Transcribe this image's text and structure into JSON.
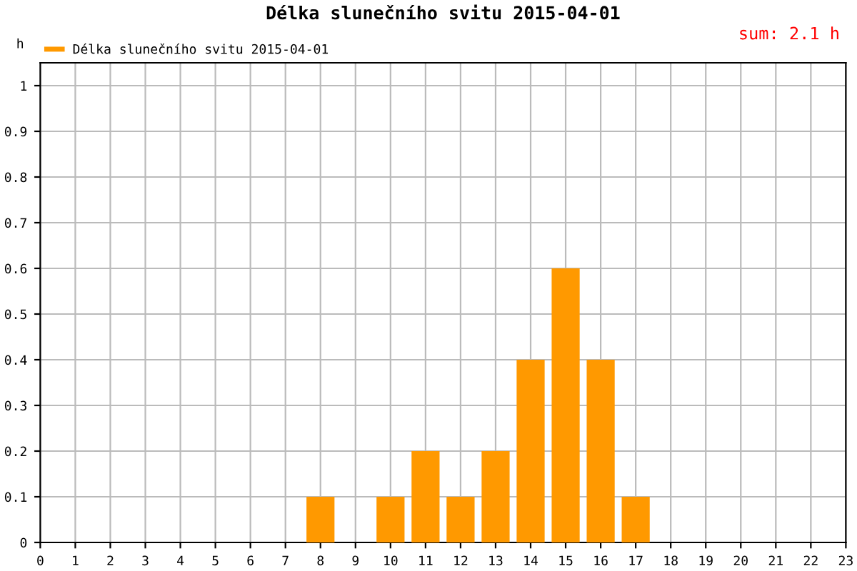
{
  "chart_data": {
    "type": "bar",
    "title": "Délka slunečního svitu 2015-04-01",
    "ylabel": "h",
    "x": [
      8,
      10,
      11,
      12,
      13,
      14,
      15,
      16,
      17
    ],
    "series": [
      {
        "name": "Délka slunečního svitu 2015-04-01",
        "color": "#ff9900",
        "values": [
          0.1,
          0.1,
          0.2,
          0.1,
          0.2,
          0.4,
          0.6,
          0.4,
          0.1
        ]
      }
    ],
    "xlim": [
      0,
      23
    ],
    "xticks": [
      0,
      1,
      2,
      3,
      4,
      5,
      6,
      7,
      8,
      9,
      10,
      11,
      12,
      13,
      14,
      15,
      16,
      17,
      18,
      19,
      20,
      21,
      22,
      23
    ],
    "ylim": [
      0,
      1.05
    ],
    "yticks": [
      0,
      0.1,
      0.2,
      0.3,
      0.4,
      0.5,
      0.6,
      0.7,
      0.8,
      0.9,
      1
    ],
    "annotations": [
      "sum: 2.1 h"
    ],
    "grid": true,
    "legend": "top left"
  }
}
